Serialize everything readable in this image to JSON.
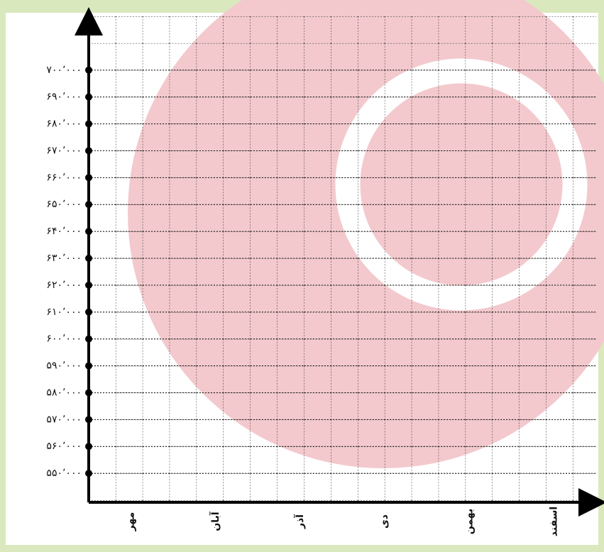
{
  "chart_data": {
    "type": "blank",
    "categories": [
      "مهر",
      "آبان",
      "آذر",
      "دی",
      "بهمن",
      "اسفند"
    ],
    "ylim": [
      540000,
      720000
    ],
    "yticks": [
      {
        "value": 550000,
        "label": "۵۵۰٬۰۰۰"
      },
      {
        "value": 560000,
        "label": "۵۶۰٬۰۰۰"
      },
      {
        "value": 570000,
        "label": "۵۷۰٬۰۰۰"
      },
      {
        "value": 580000,
        "label": "۵۸۰٬۰۰۰"
      },
      {
        "value": 590000,
        "label": "۵۹۰٬۰۰۰"
      },
      {
        "value": 600000,
        "label": "۶۰۰٬۰۰۰"
      },
      {
        "value": 610000,
        "label": "۶۱۰٬۰۰۰"
      },
      {
        "value": 620000,
        "label": "۶۲۰٬۰۰۰"
      },
      {
        "value": 630000,
        "label": "۶۳۰٬۰۰۰"
      },
      {
        "value": 640000,
        "label": "۶۴۰٬۰۰۰"
      },
      {
        "value": 650000,
        "label": "۶۵۰٬۰۰۰"
      },
      {
        "value": 660000,
        "label": "۶۶۰٬۰۰۰"
      },
      {
        "value": 670000,
        "label": "۶۷۰٬۰۰۰"
      },
      {
        "value": 680000,
        "label": "۶۸۰٬۰۰۰"
      },
      {
        "value": 690000,
        "label": "۶۹۰٬۰۰۰"
      },
      {
        "value": 700000,
        "label": "۷۰۰٬۰۰۰"
      }
    ],
    "grid": true
  }
}
